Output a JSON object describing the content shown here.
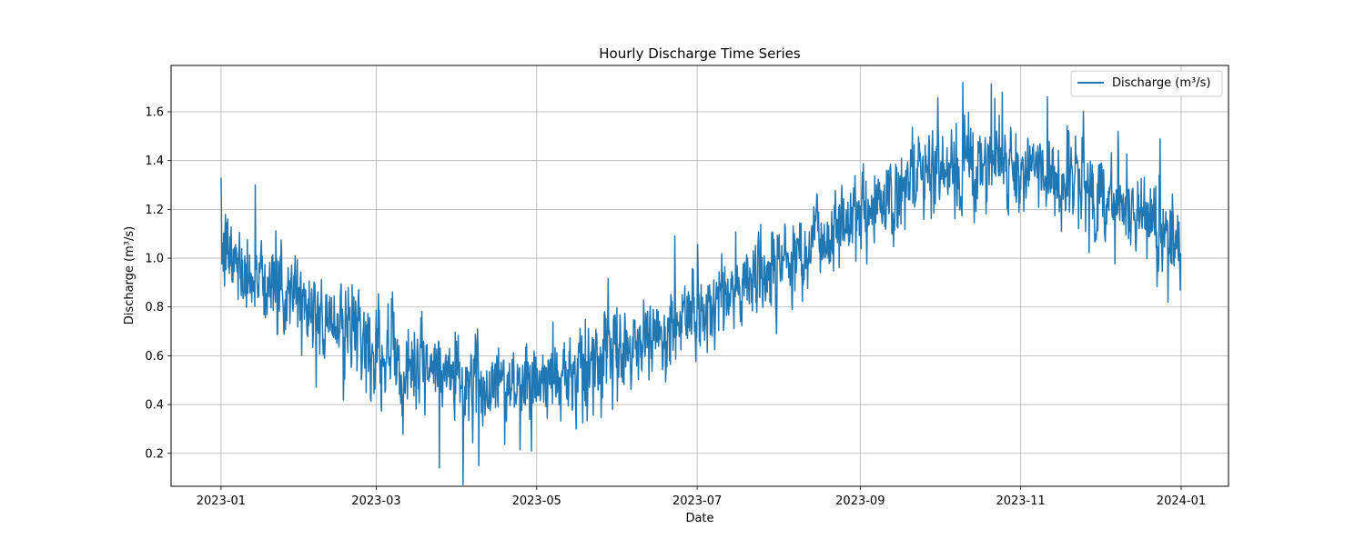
{
  "chart_data": {
    "type": "line",
    "title": "Hourly Discharge Time Series",
    "xlabel": "Date",
    "ylabel": "Discharge (m³/s)",
    "xlim": [
      "2022-12-13",
      "2024-01-19"
    ],
    "ylim": [
      0.065,
      1.79
    ],
    "x_ticks": [
      "2023-01",
      "2023-03",
      "2023-05",
      "2023-07",
      "2023-09",
      "2023-11",
      "2024-01"
    ],
    "y_ticks": [
      0.2,
      0.4,
      0.6,
      0.8,
      1.0,
      1.2,
      1.4,
      1.6
    ],
    "y_tick_labels": [
      "0.2",
      "0.4",
      "0.6",
      "0.8",
      "1.0",
      "1.2",
      "1.4",
      "1.6"
    ],
    "grid": true,
    "legend_position": "top-right",
    "series": [
      {
        "name": "Discharge (m³/s)",
        "color": "#1f77b4",
        "trend_x": [
          "2023-01-01",
          "2023-01-15",
          "2023-02-01",
          "2023-02-15",
          "2023-03-01",
          "2023-03-15",
          "2023-04-01",
          "2023-04-15",
          "2023-05-01",
          "2023-05-15",
          "2023-06-01",
          "2023-06-15",
          "2023-07-01",
          "2023-07-15",
          "2023-08-01",
          "2023-08-15",
          "2023-09-01",
          "2023-09-15",
          "2023-10-01",
          "2023-10-15",
          "2023-11-01",
          "2023-11-15",
          "2023-12-01",
          "2023-12-15",
          "2024-01-01"
        ],
        "trend_y": [
          1.02,
          0.93,
          0.82,
          0.72,
          0.63,
          0.56,
          0.5,
          0.48,
          0.49,
          0.52,
          0.6,
          0.68,
          0.77,
          0.87,
          0.98,
          1.08,
          1.2,
          1.27,
          1.34,
          1.38,
          1.37,
          1.33,
          1.27,
          1.2,
          1.07
        ],
        "noise_sd": 0.085,
        "spike_x": [
          "2023-01-01",
          "2023-01-14",
          "2023-03-25",
          "2023-04-09",
          "2023-04-29",
          "2023-10-10",
          "2023-10-25",
          "2023-12-08",
          "2023-12-27"
        ],
        "spike_y": [
          1.33,
          1.3,
          0.14,
          0.15,
          0.21,
          1.72,
          1.68,
          1.52,
          0.82
        ]
      }
    ]
  }
}
